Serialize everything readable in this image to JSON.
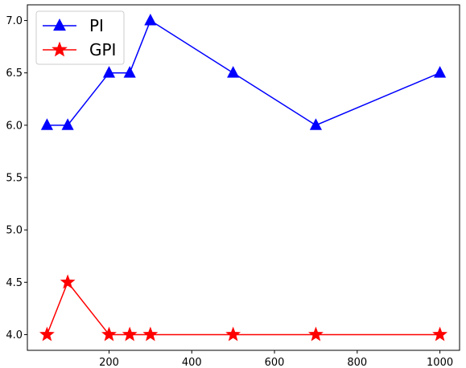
{
  "chart_data": {
    "type": "line",
    "title": "",
    "xlabel": "",
    "ylabel": "",
    "x": [
      50,
      100,
      200,
      250,
      300,
      500,
      700,
      1000
    ],
    "series": [
      {
        "name": "PI",
        "values": [
          6.0,
          6.0,
          6.5,
          6.5,
          7.0,
          6.5,
          6.0,
          6.5
        ],
        "color": "#0000ff",
        "marker": "triangle-up"
      },
      {
        "name": "GPI",
        "values": [
          4.0,
          4.5,
          4.0,
          4.0,
          4.0,
          4.0,
          4.0,
          4.0
        ],
        "color": "#ff0000",
        "marker": "star"
      }
    ],
    "xlim": [
      2.5,
      1047.5
    ],
    "ylim": [
      3.85,
      7.15
    ],
    "xticks": [
      200,
      400,
      600,
      800,
      1000
    ],
    "xtick_labels": [
      "200",
      "400",
      "600",
      "800",
      "1000"
    ],
    "yticks": [
      4.0,
      4.5,
      5.0,
      5.5,
      6.0,
      6.5,
      7.0
    ],
    "ytick_labels": [
      "4.0",
      "4.5",
      "5.0",
      "5.5",
      "6.0",
      "6.5",
      "7.0"
    ],
    "grid": false,
    "legend_position": "top-left"
  }
}
